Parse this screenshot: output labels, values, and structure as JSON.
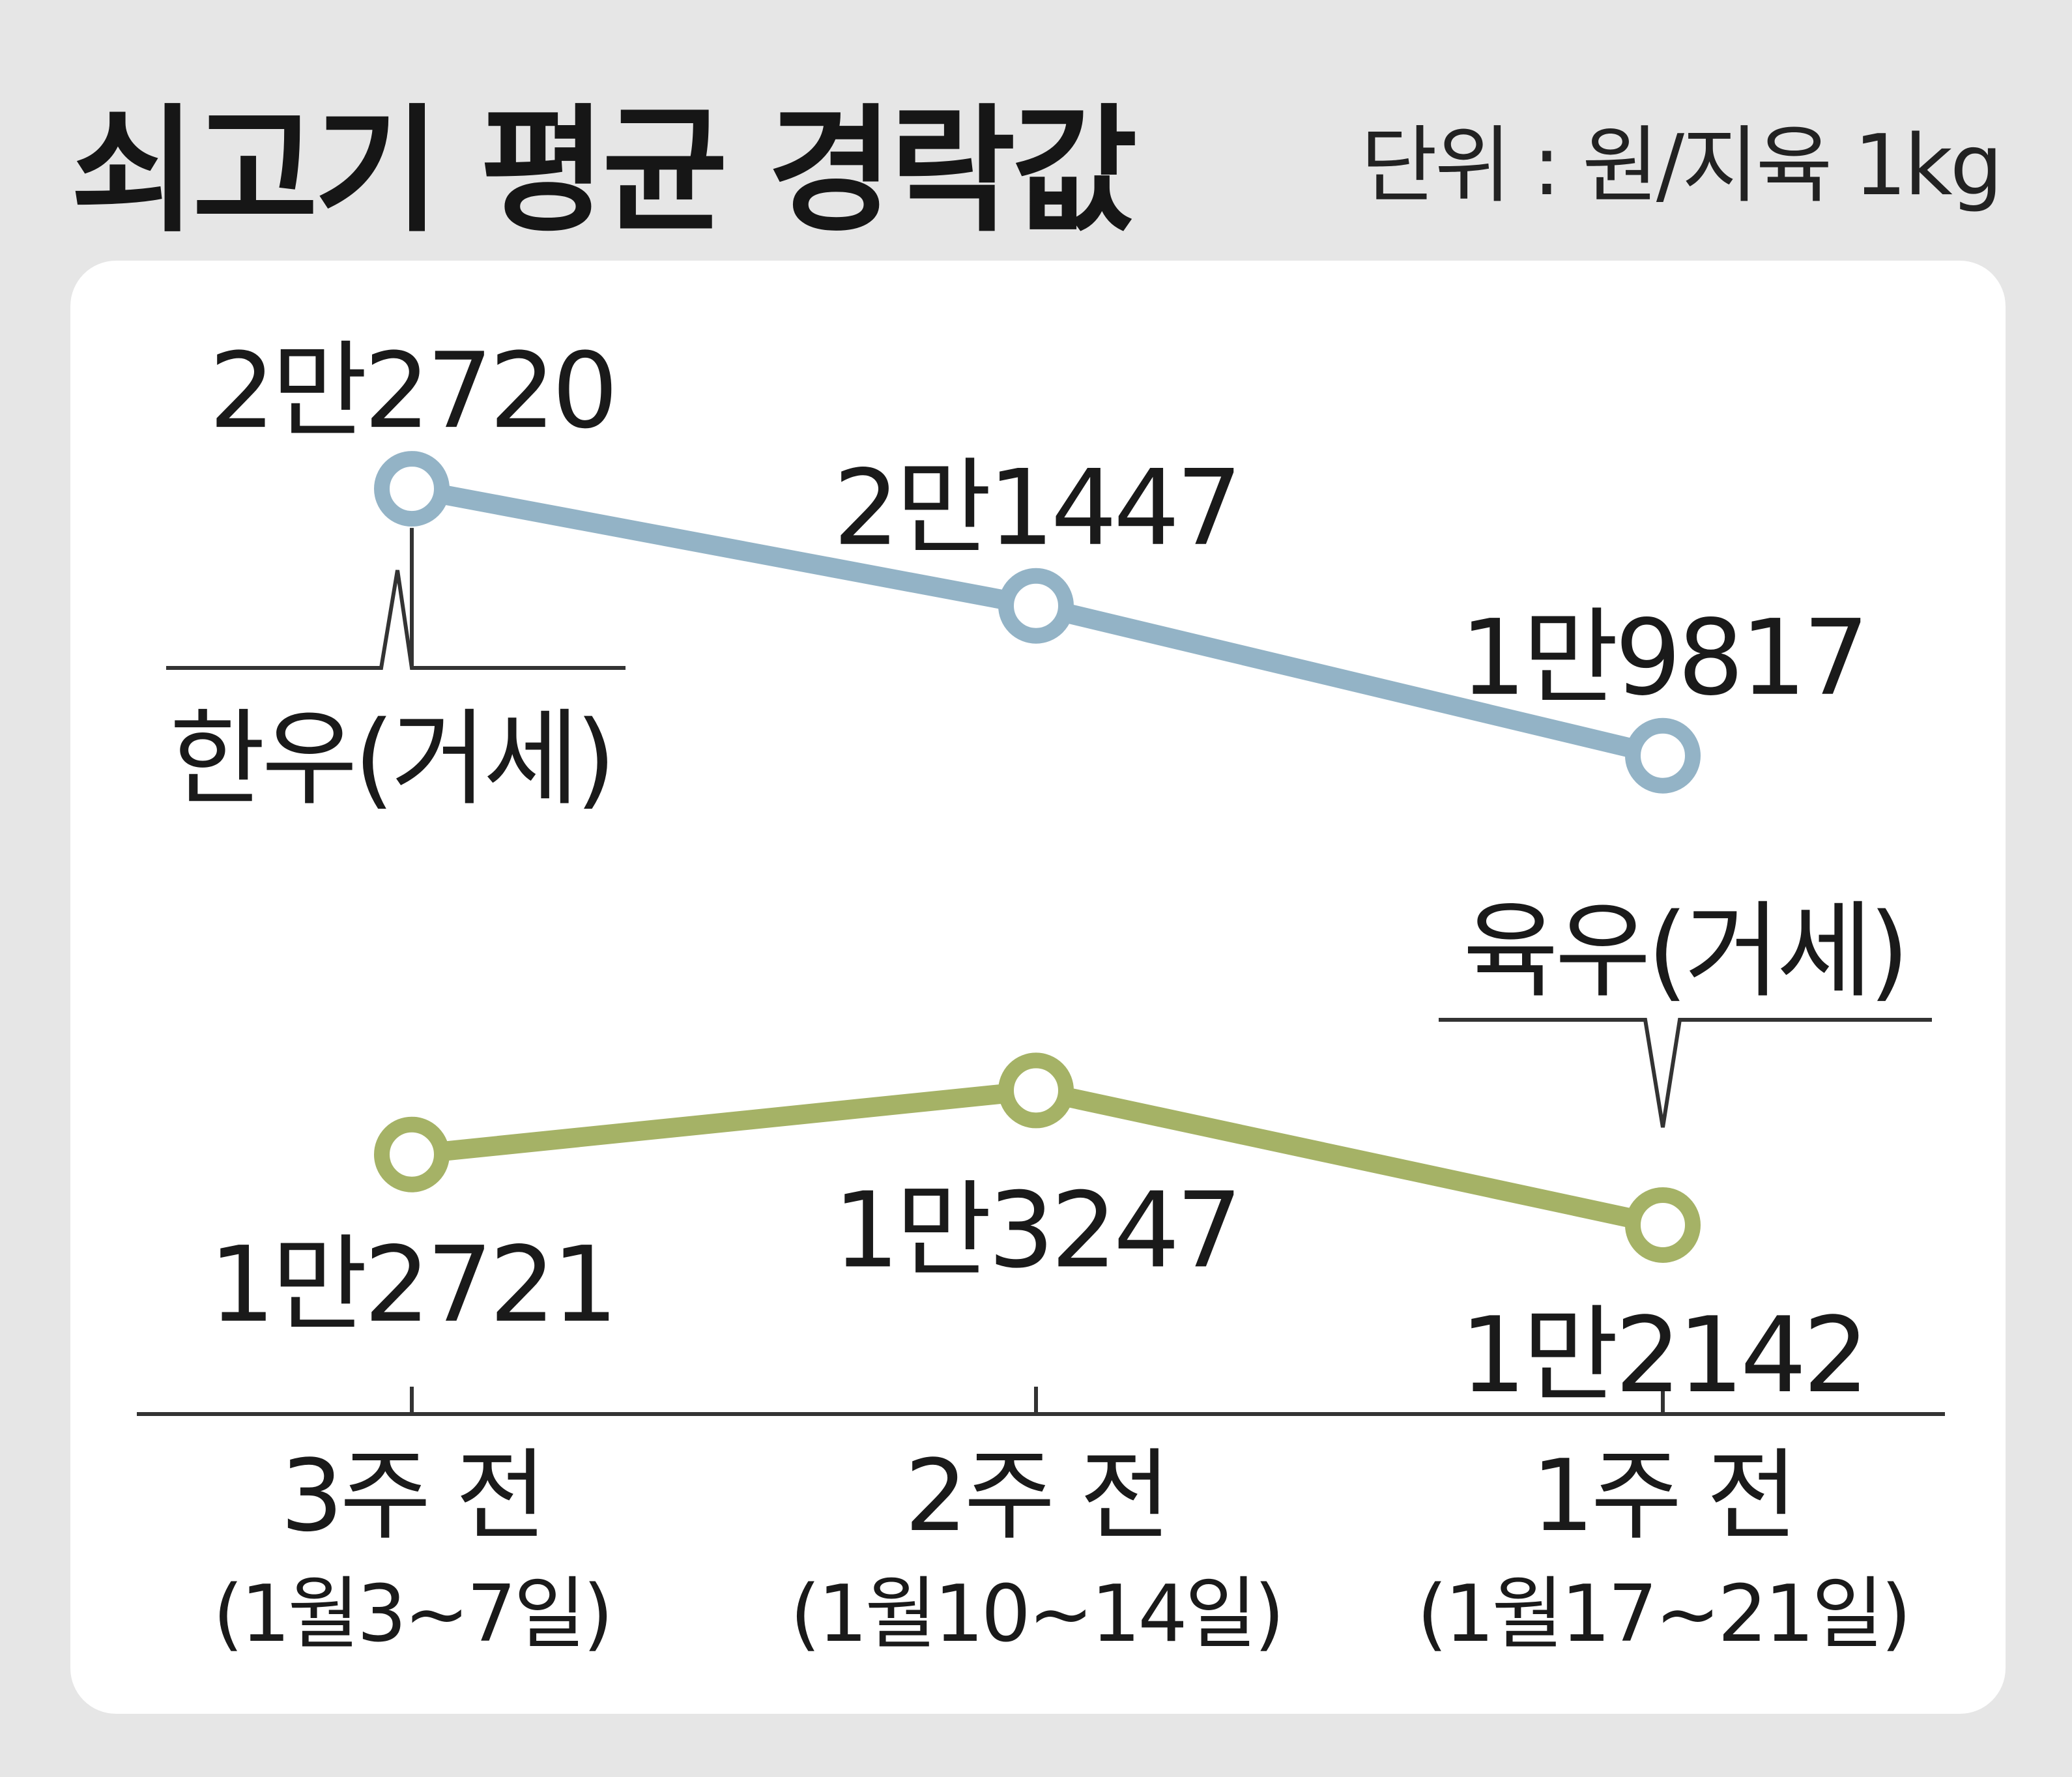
{
  "header": {
    "title": "쇠고기 평균 경락값",
    "unit": "단위 : 원/지육 1kg"
  },
  "colors": {
    "background": "#e6e6e6",
    "panel": "#ffffff",
    "hanwoo": "#93b3c6",
    "yukwoo": "#a5b266",
    "text": "#1a1a1a"
  },
  "chart_data": {
    "type": "line",
    "categories": [
      "3주 전",
      "2주 전",
      "1주 전"
    ],
    "category_sublabels": [
      "(1월3~7일)",
      "(1월10~14일)",
      "(1월17~21일)"
    ],
    "series": [
      {
        "name": "한우(거세)",
        "values": [
          22720,
          21447,
          19817
        ],
        "value_labels": [
          "2만2720",
          "2만1447",
          "1만9817"
        ]
      },
      {
        "name": "육우(거세)",
        "values": [
          12721,
          13247,
          12142
        ],
        "value_labels": [
          "1만2721",
          "1만3247",
          "1만2142"
        ]
      }
    ],
    "grid": false,
    "legend": "inline labels"
  }
}
